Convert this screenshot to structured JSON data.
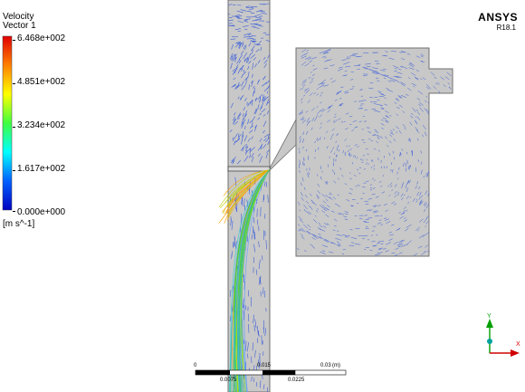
{
  "legend": {
    "title": "Velocity",
    "subtitle": "Vector 1",
    "tick_labels": [
      "6.468e+002",
      "4.851e+002",
      "3.234e+002",
      "1.617e+002",
      "0.000e+000"
    ],
    "unit": "[m s^-1]",
    "gradient_colors": [
      "#e00000",
      "#ff8000",
      "#ffff00",
      "#40ff40",
      "#00ffff",
      "#0060ff",
      "#0000c0"
    ]
  },
  "brand": {
    "name": "ANSYS",
    "version": "R18.1"
  },
  "scale_bar": {
    "top_labels": [
      "0",
      "0.015",
      "0.03",
      "(m)"
    ],
    "bottom_labels": [
      "0.0075",
      "0.0225"
    ]
  },
  "triad": {
    "y_label": "Y",
    "x_label": "X",
    "y_axis_color": "#00a000",
    "x_axis_color": "#d00000",
    "z_dot_color": "#00a0a0"
  },
  "colors": {
    "geometry_fill": "#c8c8c8",
    "geometry_edge": "#707070",
    "vector_blue": "#3d5fd9"
  }
}
